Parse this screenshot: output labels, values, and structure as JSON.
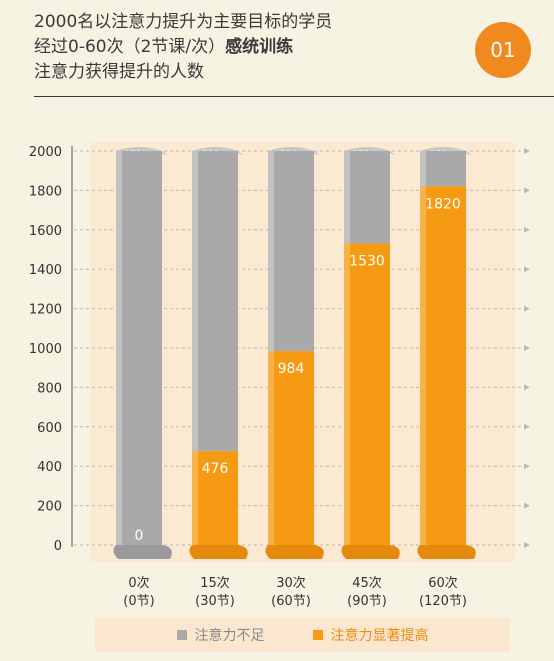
{
  "header": {
    "line1": "2000名以注意力提升为主要目标的学员",
    "line2_prefix": "经过0-60次（2节课/次）",
    "line2_bold": "感统训练",
    "line3": "注意力获得提升的人数",
    "badge": "01"
  },
  "colors": {
    "gray": "#a9a9a9",
    "orange": "#f59a12",
    "legend_gray_text": "#8a8a8a",
    "legend_orange_text": "#ef8c12"
  },
  "chart_data": {
    "type": "bar",
    "categories": [
      "0次\n(0节)",
      "15次\n(30节)",
      "30次\n(60节)",
      "45次\n(90节)",
      "60次\n(120节)"
    ],
    "series": [
      {
        "name": "注意力不足",
        "values": [
          2000,
          1524,
          1016,
          470,
          180
        ]
      },
      {
        "name": "注意力显著提高",
        "values": [
          0,
          476,
          984,
          1530,
          1820
        ]
      }
    ],
    "value_labels": [
      "0",
      "476",
      "984",
      "1530",
      "1820"
    ],
    "ylim": [
      0,
      2000
    ],
    "yticks": [
      0,
      200,
      400,
      600,
      800,
      1000,
      1200,
      1400,
      1600,
      1800,
      2000
    ],
    "grid": true,
    "stacked": true,
    "legend_position": "bottom"
  },
  "legend": {
    "gray_label": "注意力不足",
    "orange_label": "注意力显著提高"
  }
}
